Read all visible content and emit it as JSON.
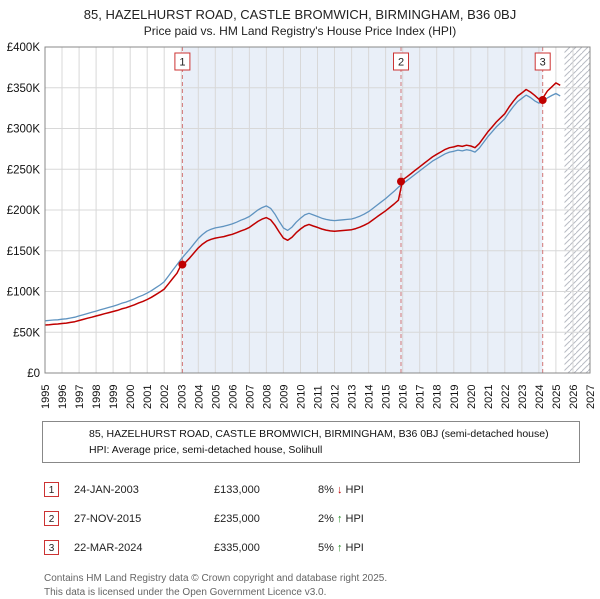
{
  "header": {
    "title": "85, HAZELHURST ROAD, CASTLE BROMWICH, BIRMINGHAM, B36 0BJ",
    "subtitle": "Price paid vs. HM Land Registry's House Price Index (HPI)"
  },
  "chart_data": {
    "type": "line",
    "title": "85, HAZELHURST ROAD, CASTLE BROMWICH, BIRMINGHAM, B36 0BJ",
    "subtitle": "Price paid vs. HM Land Registry's House Price Index (HPI)",
    "x_range": [
      1995,
      2027
    ],
    "y_range": [
      0,
      400
    ],
    "y_unit": "£K (GBP thousands)",
    "x_start": 1995,
    "x_step": 0.25,
    "grid": true,
    "x_ticks": [
      1995,
      1996,
      1997,
      1998,
      1999,
      2000,
      2001,
      2002,
      2003,
      2004,
      2005,
      2006,
      2007,
      2008,
      2009,
      2010,
      2011,
      2012,
      2013,
      2014,
      2015,
      2016,
      2017,
      2018,
      2019,
      2020,
      2021,
      2022,
      2023,
      2024,
      2025,
      2026,
      2027
    ],
    "y_ticks": [
      {
        "v": 0,
        "label": "£0"
      },
      {
        "v": 50,
        "label": "£50K"
      },
      {
        "v": 100,
        "label": "£100K"
      },
      {
        "v": 150,
        "label": "£150K"
      },
      {
        "v": 200,
        "label": "£200K"
      },
      {
        "v": 250,
        "label": "£250K"
      },
      {
        "v": 300,
        "label": "£300K"
      },
      {
        "v": 350,
        "label": "£350K"
      },
      {
        "v": 400,
        "label": "£400K"
      }
    ],
    "colors": {
      "property_line": "#c00000",
      "hpi_line": "#5f93c0",
      "shade": "#e9eff8",
      "sale_line": "#d47777",
      "grid": "#d8d8d8",
      "border": "#888888",
      "hatch": "#b8bcc4"
    },
    "shaded_region": [
      2003.07,
      2024.22
    ],
    "hatched_region": [
      2025.5,
      2027
    ],
    "series": [
      {
        "name": "85, HAZELHURST ROAD, CASTLE BROMWICH, BIRMINGHAM, B36 0BJ (semi-detached house)",
        "color": "#c00000",
        "values": [
          58.9,
          59.3,
          59.8,
          60.1,
          60.7,
          61.2,
          62.1,
          63,
          64.4,
          65.8,
          67.2,
          68.5,
          69.9,
          71.3,
          72.7,
          74.1,
          75.4,
          76.8,
          78.7,
          80,
          81.9,
          83.7,
          86,
          87.9,
          90.2,
          92.9,
          96.1,
          99.4,
          103,
          109.5,
          115.9,
          122.4,
          133,
          135.8,
          141.4,
          147.4,
          153.5,
          158.1,
          161.8,
          164.1,
          165.5,
          166.5,
          167.4,
          168.8,
          170.2,
          172.1,
          174.4,
          176.2,
          178.6,
          182.3,
          186,
          188.8,
          190.7,
          187.9,
          181.4,
          173,
          165.5,
          162.8,
          166.5,
          172.1,
          176.7,
          180.4,
          182.3,
          180.4,
          178.6,
          176.7,
          175.3,
          174.4,
          173.9,
          174.4,
          174.8,
          175.3,
          175.8,
          177.2,
          179,
          181.4,
          184.1,
          187.9,
          191.6,
          195.3,
          199,
          203.2,
          207.4,
          212,
          237,
          240.7,
          244.8,
          248.9,
          253,
          257,
          261.1,
          265.2,
          268.3,
          271.3,
          274.4,
          276.4,
          277.4,
          279,
          278,
          279.5,
          278.5,
          276.4,
          281.5,
          288.7,
          295.8,
          301.9,
          308,
          313.1,
          318.2,
          326.4,
          333.5,
          339.7,
          343.7,
          347.8,
          344.8,
          340.7,
          336,
          338,
          346,
          351,
          356,
          353
        ]
      },
      {
        "name": "HPI: Average price, semi-detached house, Solihull",
        "color": "#5f93c0",
        "values": [
          64,
          64.5,
          65,
          65.3,
          66,
          66.5,
          67.5,
          68.5,
          70,
          71.5,
          73,
          74.5,
          76,
          77.5,
          79,
          80.5,
          82,
          83.5,
          85.5,
          87,
          89,
          91,
          93.5,
          95.5,
          98,
          101,
          104.5,
          108,
          112,
          119,
          126,
          133,
          140,
          146,
          152,
          158.5,
          165,
          170,
          174,
          176.5,
          178,
          179,
          180,
          181.5,
          183,
          185,
          187.5,
          189.5,
          192,
          196,
          200,
          203,
          205,
          202,
          195,
          186,
          178,
          175,
          179,
          185,
          190,
          194,
          196,
          194,
          192,
          190,
          188.5,
          187.5,
          187,
          187.5,
          188,
          188.5,
          189,
          190.5,
          192.5,
          195,
          198,
          202,
          206,
          210,
          214,
          218.5,
          223,
          228,
          232,
          236,
          240,
          244,
          248,
          252,
          256,
          260,
          263,
          266,
          269,
          271,
          272,
          273.5,
          272.5,
          274,
          273,
          271,
          276,
          283,
          290,
          296,
          302,
          307,
          312,
          320,
          327,
          333,
          337,
          341,
          338,
          334,
          331,
          334,
          337.5,
          340.5,
          343,
          340
        ]
      }
    ],
    "sales": [
      {
        "n": "1",
        "x": 2003.07,
        "y": 133,
        "date": "24-JAN-2003",
        "price_label": "£133,000",
        "pct": "8%",
        "arrow": "↓",
        "arrow_class": "arrow-down",
        "hpi_word": "HPI"
      },
      {
        "n": "2",
        "x": 2015.9,
        "y": 235,
        "date": "27-NOV-2015",
        "price_label": "£235,000",
        "pct": "2%",
        "arrow": "↑",
        "arrow_class": "arrow-up",
        "hpi_word": "HPI"
      },
      {
        "n": "3",
        "x": 2024.22,
        "y": 335,
        "date": "22-MAR-2024",
        "price_label": "£335,000",
        "pct": "5%",
        "arrow": "↑",
        "arrow_class": "arrow-up",
        "hpi_word": "HPI"
      }
    ]
  },
  "legend": {
    "items": [
      {
        "label": "85, HAZELHURST ROAD, CASTLE BROMWICH, BIRMINGHAM, B36 0BJ (semi-detached house)",
        "color": "#c00000"
      },
      {
        "label": "HPI: Average price, semi-detached house, Solihull",
        "color": "#5f93c0"
      }
    ]
  },
  "footer": {
    "line1": "Contains HM Land Registry data © Crown copyright and database right 2025.",
    "line2": "This data is licensed under the Open Government Licence v3.0."
  }
}
